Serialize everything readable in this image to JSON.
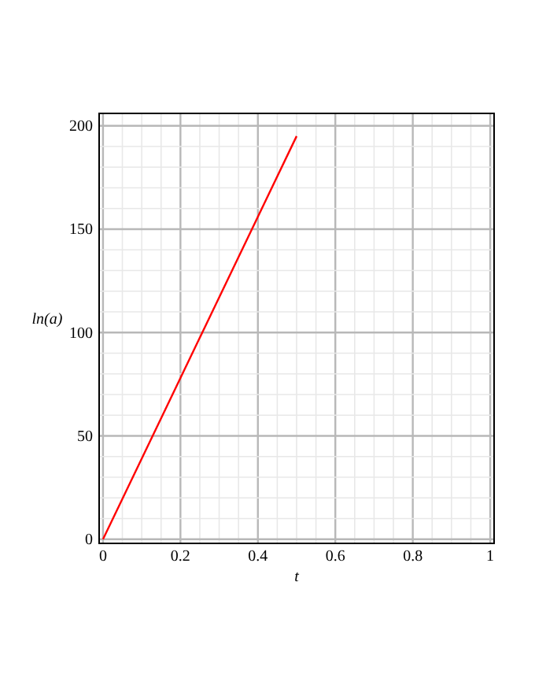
{
  "chart_data": {
    "type": "line",
    "xlabel": "t",
    "ylabel": "ln(a)",
    "x": [
      0,
      0.5
    ],
    "series": [
      {
        "color": "#ff0000",
        "values": [
          0,
          195
        ]
      }
    ],
    "xlim": [
      -0.01,
      1.01
    ],
    "ylim": [
      -2,
      206
    ],
    "xticks": [
      0,
      {
        "value": 0.05,
        "label": null
      },
      {
        "value": 0.1,
        "label": null
      },
      {
        "value": 0.15,
        "label": null
      },
      0.2,
      {
        "value": 0.25,
        "label": null
      },
      {
        "value": 0.3,
        "label": null
      },
      {
        "value": 0.35,
        "label": null
      },
      0.4,
      {
        "value": 0.45,
        "label": null
      },
      {
        "value": 0.5,
        "label": null
      },
      {
        "value": 0.55,
        "label": null
      },
      0.6,
      {
        "value": 0.65,
        "label": null
      },
      {
        "value": 0.7,
        "label": null
      },
      {
        "value": 0.75,
        "label": null
      },
      0.8,
      {
        "value": 0.85,
        "label": null
      },
      {
        "value": 0.9,
        "label": null
      },
      {
        "value": 0.95,
        "label": null
      },
      1
    ],
    "yticks": [
      0,
      {
        "value": 10,
        "label": null
      },
      {
        "value": 20,
        "label": null
      },
      {
        "value": 30,
        "label": null
      },
      {
        "value": 40,
        "label": null
      },
      50,
      {
        "value": 60,
        "label": null
      },
      {
        "value": 70,
        "label": null
      },
      {
        "value": 80,
        "label": null
      },
      {
        "value": 90,
        "label": null
      },
      100,
      {
        "value": 110,
        "label": null
      },
      {
        "value": 120,
        "label": null
      },
      {
        "value": 130,
        "label": null
      },
      {
        "value": 140,
        "label": null
      },
      150,
      {
        "value": 160,
        "label": null
      },
      {
        "value": 170,
        "label": null
      },
      {
        "value": 180,
        "label": null
      },
      {
        "value": 190,
        "label": null
      },
      200
    ],
    "grid": true,
    "line_style": "solid",
    "marker": "none"
  }
}
